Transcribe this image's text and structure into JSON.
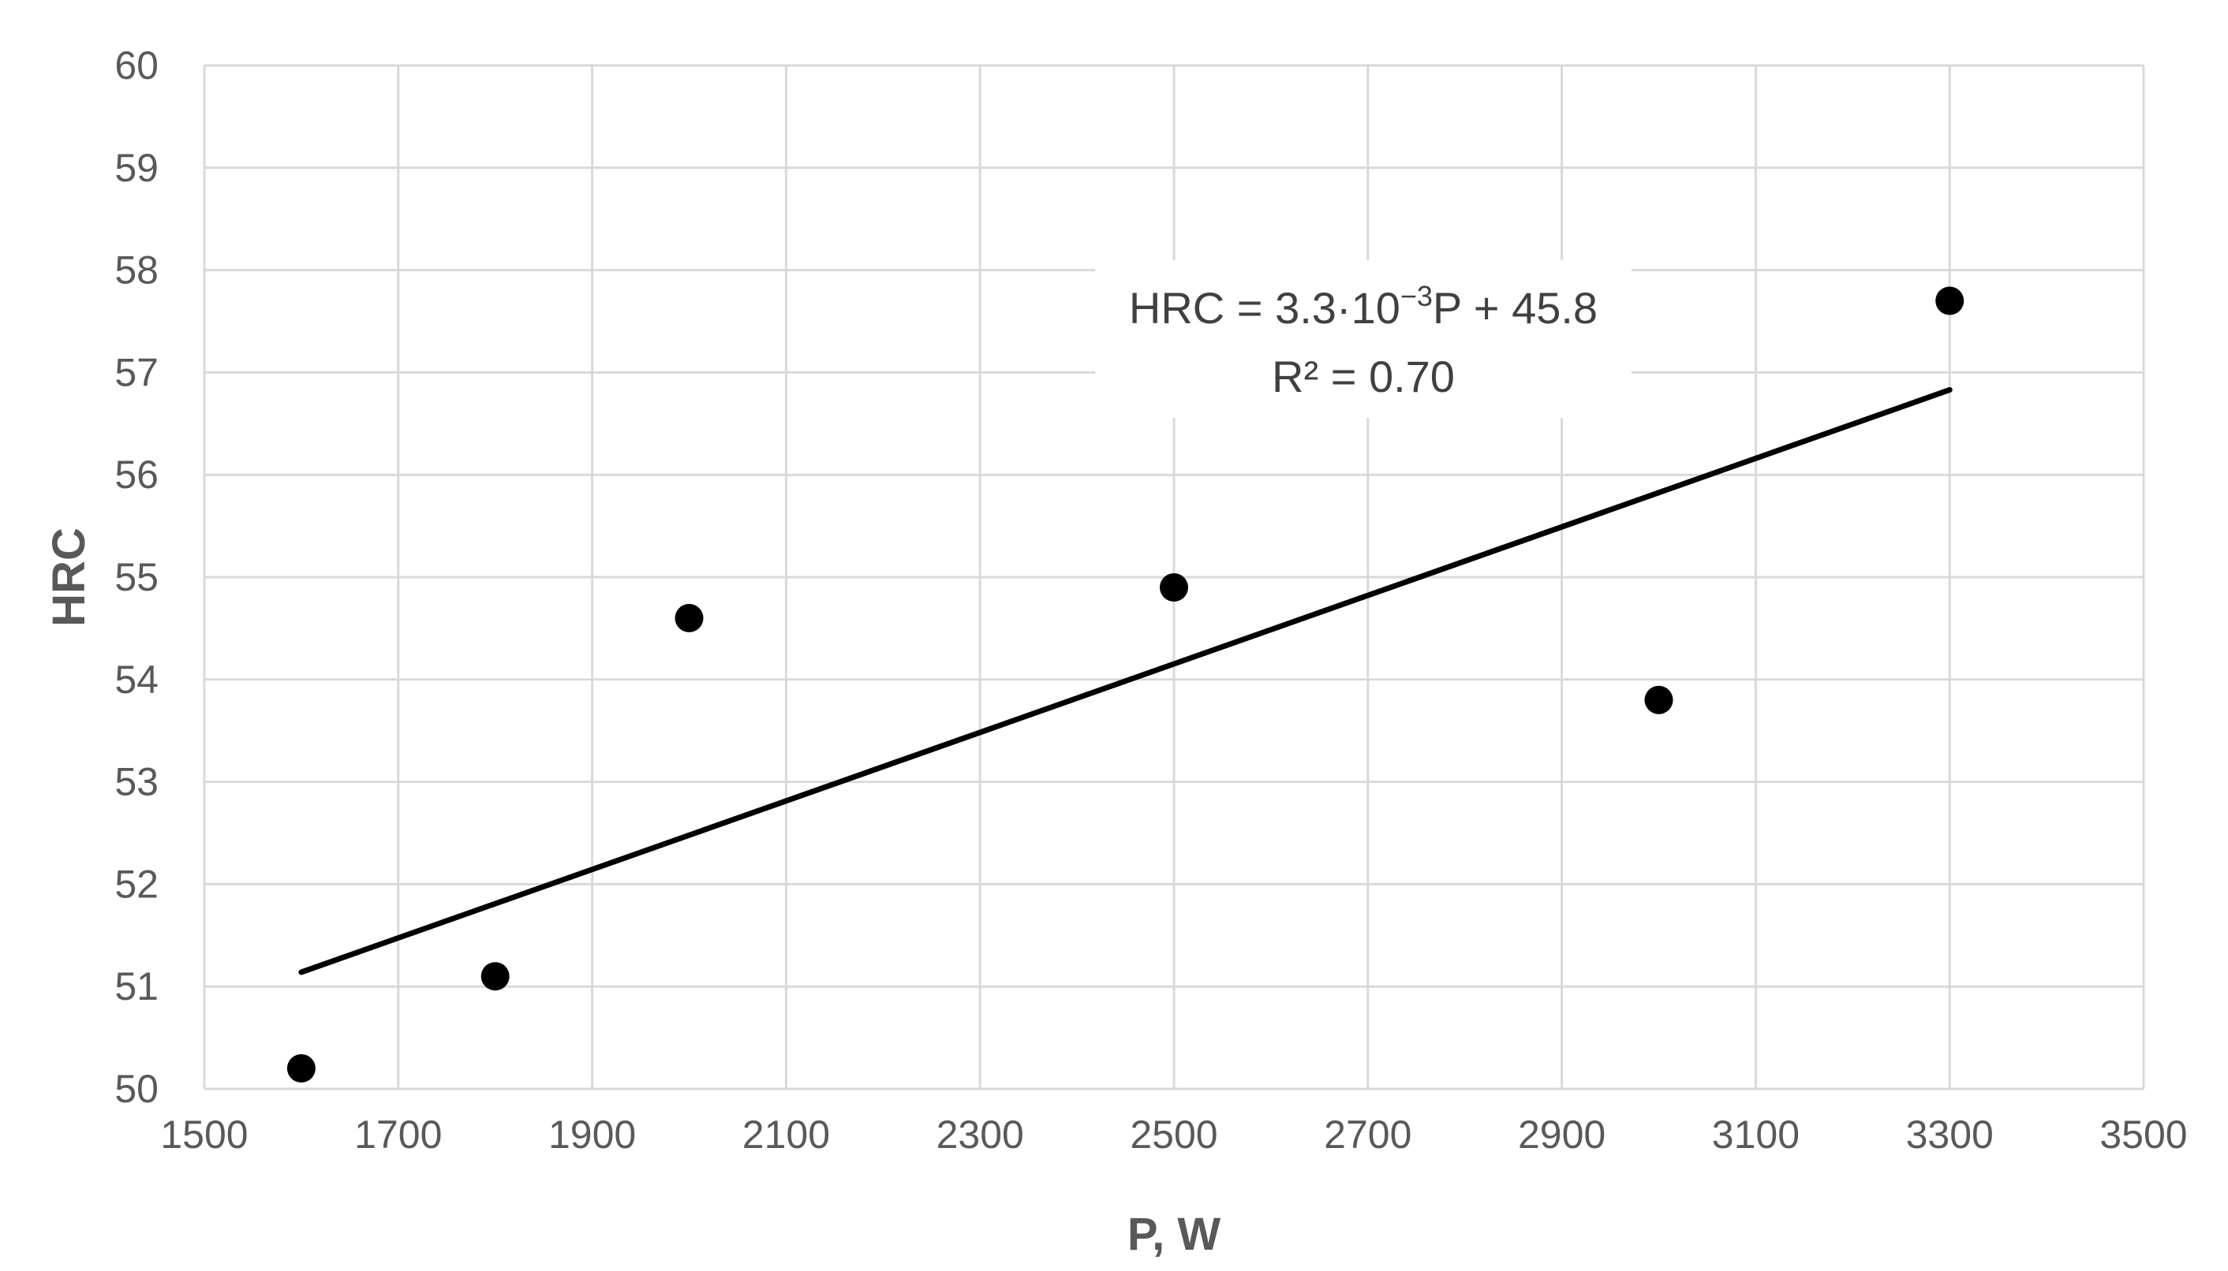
{
  "chart_data": {
    "type": "scatter",
    "title": "",
    "xlabel": "P, W",
    "ylabel": "HRC",
    "xlim": [
      1500,
      3500
    ],
    "ylim": [
      50,
      60
    ],
    "x_ticks": [
      1500,
      1700,
      1900,
      2100,
      2300,
      2500,
      2700,
      2900,
      3100,
      3300,
      3500
    ],
    "y_ticks": [
      50,
      51,
      52,
      53,
      54,
      55,
      56,
      57,
      58,
      59,
      60
    ],
    "x_tick_labels": [
      "1500",
      "1700",
      "1900",
      "2100",
      "2300",
      "2500",
      "2700",
      "2900",
      "3100",
      "3300",
      "3500"
    ],
    "y_tick_labels": [
      "50",
      "51",
      "52",
      "53",
      "54",
      "55",
      "56",
      "57",
      "58",
      "59",
      "60"
    ],
    "grid": true,
    "legend": "none",
    "series": [
      {
        "points": [
          {
            "x": 1600,
            "y": 50.2
          },
          {
            "x": 1800,
            "y": 51.1
          },
          {
            "x": 2000,
            "y": 54.6
          },
          {
            "x": 2500,
            "y": 54.9
          },
          {
            "x": 3000,
            "y": 53.8
          },
          {
            "x": 3300,
            "y": 57.7
          }
        ],
        "color": "#000000"
      }
    ],
    "trendline": {
      "type": "linear",
      "x_range": [
        1600,
        3300
      ],
      "y_range": [
        51.14,
        56.83
      ],
      "color": "#000000"
    },
    "annotation": {
      "equation_prefix": "HRC = 3.3·10",
      "equation_exponent": "−3",
      "equation_suffix": "P + 45.8",
      "r_squared": "R² = 0.70"
    },
    "colors": {
      "grid": "#d9d9d9",
      "tick_text": "#595959",
      "axis_title": "#595959",
      "annotation_text": "#404040",
      "marker": "#000000",
      "trendline": "#000000"
    }
  }
}
